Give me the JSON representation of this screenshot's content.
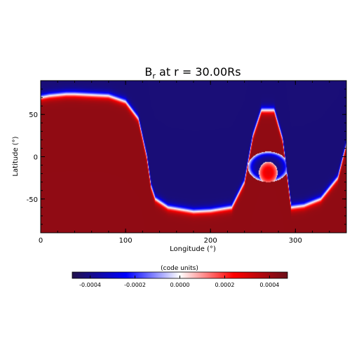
{
  "chart_data": {
    "type": "heatmap",
    "title": "B",
    "title_subscript": "r",
    "title_suffix": " at r = 30.00Rs",
    "xlabel": "Longitude (°)",
    "ylabel": "Latitude (°)",
    "xlim": [
      0,
      360
    ],
    "ylim": [
      -90,
      90
    ],
    "x_ticks": [
      0,
      100,
      200,
      300
    ],
    "y_ticks": [
      -50,
      0,
      50
    ],
    "colorbar": {
      "label": "(code units)",
      "range": [
        -0.00048,
        0.00048
      ],
      "ticks": [
        -0.0004,
        -0.0002,
        0.0,
        0.0002,
        0.0004
      ],
      "tick_labels": [
        "-0.0004",
        "-0.0002",
        "0.0000",
        "0.0002",
        "0.0004"
      ],
      "colors": [
        "#22124a",
        "#0000ff",
        "#ffffff",
        "#ff0000",
        "#6b0f1a"
      ]
    },
    "field_summary": {
      "positive_value": 0.00042,
      "negative_value": -0.00042,
      "neutral_line_latitude_by_longitude": {
        "longitudes": [
          0,
          10,
          20,
          30,
          40,
          60,
          80,
          100,
          115,
          125,
          130,
          135,
          150,
          180,
          200,
          225,
          240,
          250,
          260,
          275,
          285,
          295,
          310,
          330,
          350,
          360
        ],
        "latitudes": [
          70,
          72,
          73,
          74,
          74,
          73,
          72,
          65,
          45,
          0,
          -35,
          -50,
          -60,
          -65,
          -64,
          -60,
          -30,
          25,
          55,
          55,
          20,
          -60,
          -58,
          -50,
          -25,
          15
        ]
      },
      "negative_island": {
        "longitude": 268,
        "latitude": -12,
        "half_width_deg": 24,
        "half_height_deg": 18
      },
      "positive_blobs": [
        {
          "longitude": 267,
          "latitude": 32,
          "strength": 0.00035
        },
        {
          "longitude": 268,
          "latitude": -19,
          "strength": 0.0003
        }
      ],
      "north_cap_latitude": 82
    }
  }
}
